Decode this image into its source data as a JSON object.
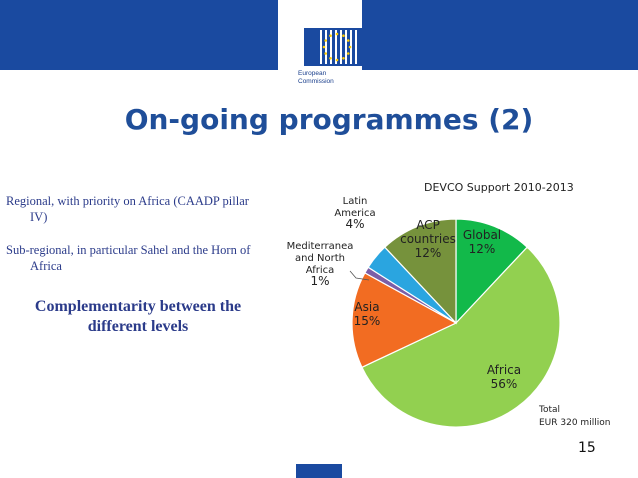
{
  "header": {
    "logo_lines": [
      "European",
      "Commission"
    ],
    "brand_color": "#1a4aa0"
  },
  "slide": {
    "title": "On-going programmes (2)",
    "bullets": [
      {
        "line1": "Regional, with priority on Africa (CAADP pillar",
        "line2": "IV)"
      },
      {
        "line1": "Sub-regional, in particular Sahel and the Horn of",
        "line2": "Africa"
      }
    ],
    "emphasis": [
      "Complementarity between the",
      "different levels"
    ],
    "page_number": "15"
  },
  "chart_data": {
    "type": "pie",
    "title": "DEVCO Support 2010-2013",
    "slices": [
      {
        "label_lines": [
          "Global"
        ],
        "value": 12,
        "value_label": "12%",
        "color": "#12b94a"
      },
      {
        "label_lines": [
          "Africa"
        ],
        "value": 56,
        "value_label": "56%",
        "color": "#92d050"
      },
      {
        "label_lines": [
          "Asia"
        ],
        "value": 15,
        "value_label": "15%",
        "color": "#f26c22"
      },
      {
        "label_lines": [
          "Mediterranea",
          "and North",
          "Africa"
        ],
        "value": 1,
        "value_label": "1%",
        "color": "#7b5ea7"
      },
      {
        "label_lines": [
          "Latin",
          "America"
        ],
        "value": 4,
        "value_label": "4%",
        "color": "#2aa5e0"
      },
      {
        "label_lines": [
          "ACP",
          "countries"
        ],
        "value": 12,
        "value_label": "12%",
        "color": "#76923c"
      }
    ],
    "note_lines": [
      "Total",
      "EUR 320 million"
    ]
  }
}
